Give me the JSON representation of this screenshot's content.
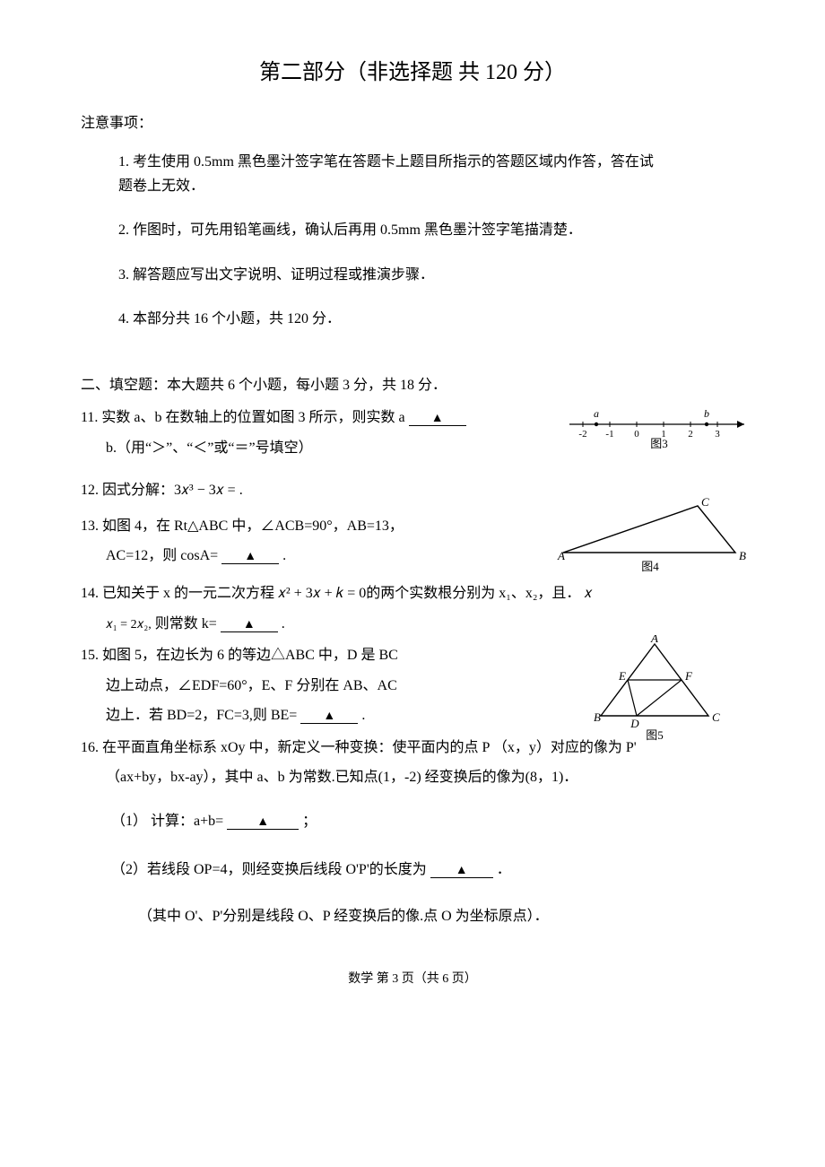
{
  "title": "第二部分（非选择题 共 120 分）",
  "notice_heading": "注意事项：",
  "notices": {
    "n1_line1": "1. 考生使用 0.5mm 黑色墨汁签字笔在答题卡上题目所指示的答题区域内作答，答在试",
    "n1_line2": "题卷上无效．",
    "n2": "2. 作图时，可先用铅笔画线，确认后再用 0.5mm 黑色墨汁签字笔描清楚．",
    "n3": "3. 解答题应写出文字说明、证明过程或推演步骤．",
    "n4": "4.  本部分共 16 个小题，共 120 分．"
  },
  "section2_heading": "二、填空题：本大题共 6 个小题，每小题 3 分，共 18 分．",
  "q11": {
    "line1_a": "11. 实数 a、b 在数轴上的位置如图 3 所示，则实数 a",
    "line2": "b.（用“＞”、“＜”或“＝”号填空）"
  },
  "q12": {
    "text_a": "12.  因式分解：",
    "formula": "3𝑥³ − 3𝑥 =",
    "text_b": "."
  },
  "q13": {
    "line1": "13.  如图 4，在 Rt△ABC 中，∠ACB=90°，AB=13，",
    "line2_a": "AC=12，则 cosA=",
    "line2_b": "."
  },
  "q14": {
    "line1_a": "14. 已知关于 x 的一元二次方程 ",
    "formula1": "𝑥² + 3𝑥 + 𝑘 = 0",
    "line1_b": "的两个实数根分别为 x₁、x₂，且．",
    "line2_a": "𝑥₁ = 2𝑥₂,",
    "line2_b": "则常数 k=",
    "line2_c": "."
  },
  "q15": {
    "line1": "15.  如图 5，在边长为 6 的等边△ABC 中，D 是 BC",
    "line2": "边上动点，∠EDF=60°，E、F 分别在 AB、AC",
    "line3_a": "边上．若 BD=2，FC=3,则 BE=",
    "line3_b": "."
  },
  "q16": {
    "line1": "16. 在平面直角坐标系 xOy 中，新定义一种变换：使平面内的点 P （x，y）对应的像为 P'",
    "line2": "（ax+by，bx-ay），其中 a、b 为常数.已知点(1，-2) 经变换后的像为(8，1)．",
    "sub1_a": "（1） 计算：a+b=",
    "sub1_b": "；",
    "sub2_a": "（2）若线段 OP=4，则经变换后线段 O'P'的长度为",
    "sub2_b": "．",
    "note": "（其中 O'、P'分别是线段 O、P 经变换后的像.点 O 为坐标原点）．"
  },
  "blank_mark": "▲",
  "fig3": {
    "caption": "图3",
    "ticks": [
      "-2",
      "-1",
      "0",
      "1",
      "2",
      "3"
    ],
    "labels": {
      "a": "a",
      "b": "b"
    },
    "a_pos_index": 0.5,
    "b_pos_index": 4.6
  },
  "fig4": {
    "caption": "图4",
    "A": "A",
    "B": "B",
    "C": "C"
  },
  "fig5": {
    "caption": "图5",
    "A": "A",
    "B": "B",
    "C": "C",
    "D": "D",
    "E": "E",
    "F": "F"
  },
  "footer": "数学 第 3 页（共 6 页）"
}
